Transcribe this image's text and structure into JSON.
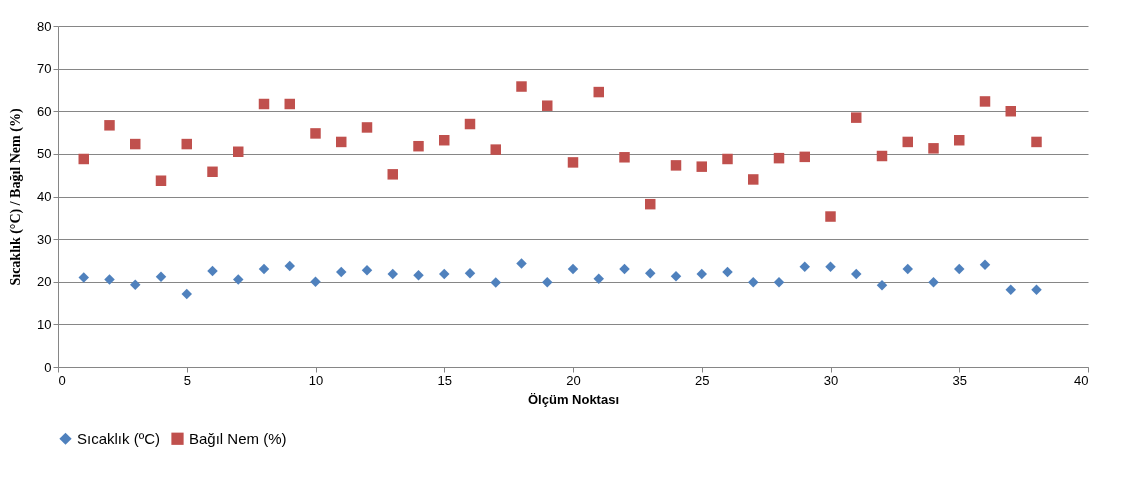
{
  "chart_data": {
    "type": "scatter",
    "xlabel": "Ölçüm Noktası",
    "ylabel": "Sıcaklık (°C) / Bağıl Nem (%)",
    "x": [
      1,
      2,
      3,
      4,
      5,
      6,
      7,
      8,
      9,
      10,
      11,
      12,
      13,
      14,
      15,
      16,
      17,
      18,
      19,
      20,
      21,
      22,
      23,
      24,
      25,
      26,
      27,
      28,
      29,
      30,
      31,
      32,
      33,
      34,
      35,
      36,
      37,
      38
    ],
    "series": [
      {
        "name": "Sıcaklık (ºC)",
        "color": "#4f81bd",
        "marker": "diamond",
        "values": [
          21.0,
          20.5,
          19.3,
          21.2,
          17.1,
          22.5,
          20.5,
          23.0,
          23.7,
          20.0,
          22.3,
          22.7,
          21.8,
          21.5,
          21.8,
          22.0,
          19.8,
          24.3,
          19.9,
          23.0,
          20.7,
          23.0,
          22.0,
          21.3,
          21.8,
          22.3,
          19.9,
          19.9,
          23.5,
          23.5,
          21.8,
          19.2,
          23.0,
          19.9,
          23.0,
          24.0,
          18.1,
          18.1
        ]
      },
      {
        "name": "Bağıl Nem (%)",
        "color": "#c0504d",
        "marker": "square",
        "values": [
          48.8,
          56.7,
          52.3,
          43.7,
          52.3,
          45.8,
          50.5,
          61.7,
          61.7,
          54.8,
          52.8,
          56.2,
          45.2,
          51.8,
          53.2,
          57.0,
          51.0,
          65.8,
          61.3,
          48.0,
          64.5,
          49.2,
          38.2,
          47.3,
          47.0,
          48.8,
          44.0,
          49.0,
          49.3,
          35.3,
          58.5,
          49.5,
          52.8,
          51.3,
          53.2,
          62.3,
          60.0,
          52.8
        ]
      }
    ],
    "xlim": [
      0,
      40
    ],
    "xticks": [
      0,
      5,
      10,
      15,
      20,
      25,
      30,
      35,
      40
    ],
    "ylim": [
      0,
      80
    ],
    "yticks": [
      0,
      10,
      20,
      30,
      40,
      50,
      60,
      70,
      80
    ],
    "grid": "y",
    "legend": "bottom"
  }
}
